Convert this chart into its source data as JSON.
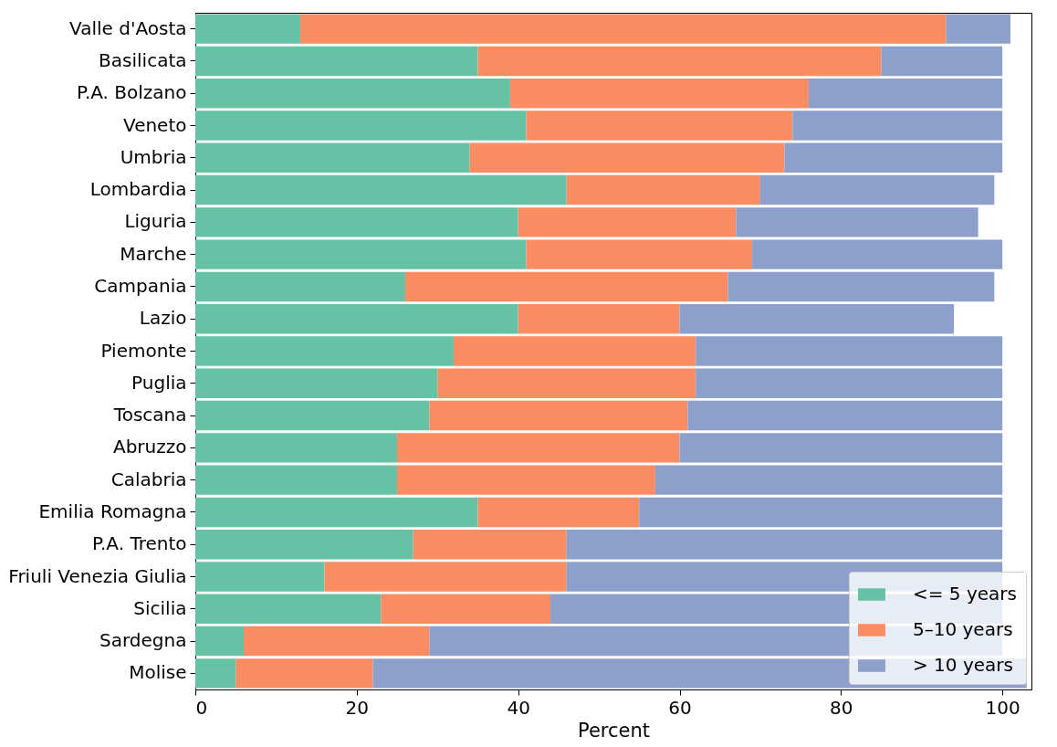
{
  "chart_data": {
    "type": "bar",
    "orientation": "horizontal",
    "stacked": true,
    "xlabel": "Percent",
    "categories": [
      "Valle d'Aosta",
      "Basilicata",
      "P.A. Bolzano",
      "Veneto",
      "Umbria",
      "Lombardia",
      "Liguria",
      "Marche",
      "Campania",
      "Lazio",
      "Piemonte",
      "Puglia",
      "Toscana",
      "Abruzzo",
      "Calabria",
      "Emilia Romagna",
      "P.A. Trento",
      "Friuli Venezia Giulia",
      "Sicilia",
      "Sardegna",
      "Molise"
    ],
    "series": [
      {
        "name": "<= 5 years",
        "color": "#66c2a5",
        "values": [
          13,
          35,
          39,
          41,
          34,
          46,
          40,
          41,
          26,
          40,
          32,
          30,
          29,
          25,
          25,
          35,
          27,
          16,
          23,
          6,
          5
        ]
      },
      {
        "name": "5–10 years",
        "color": "#fc8d62",
        "values": [
          80,
          50,
          37,
          33,
          39,
          24,
          27,
          28,
          40,
          20,
          30,
          32,
          32,
          35,
          32,
          20,
          19,
          30,
          21,
          23,
          17
        ]
      },
      {
        "name": "> 10 years",
        "color": "#8da0cb",
        "values": [
          8,
          15,
          24,
          26,
          27,
          29,
          30,
          31,
          33,
          34,
          38,
          38,
          39,
          40,
          43,
          45,
          54,
          54,
          56,
          71,
          81
        ]
      }
    ],
    "xlim": [
      0,
      103.6
    ],
    "xticks": [
      0,
      20,
      40,
      60,
      80,
      100
    ],
    "grid": false,
    "legend": "bottom right"
  }
}
